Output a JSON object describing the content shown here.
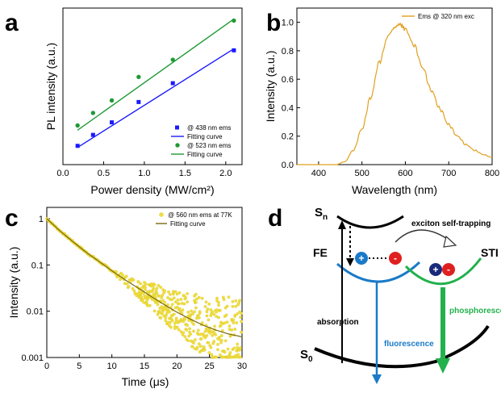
{
  "chart_data": [
    {
      "panel": "a",
      "type": "scatter",
      "xlabel": "Power density (MW/cm²)",
      "ylabel": "PL intensity (a.u.)",
      "xlim": [
        0.0,
        2.2
      ],
      "x_ticks": [
        "0.0",
        "0.5",
        "1.0",
        "1.5",
        "2.0"
      ],
      "grid": false,
      "legend_position": "bottom-right",
      "series": [
        {
          "name": "@ 438 nm ems",
          "color": "#1a1aff",
          "marker": "square",
          "x": [
            0.18,
            0.37,
            0.6,
            0.93,
            1.35,
            2.1
          ],
          "y": [
            0.12,
            0.19,
            0.27,
            0.4,
            0.52,
            0.73
          ]
        },
        {
          "name": "Fitting curve",
          "color": "#1a1aff",
          "line": true,
          "x": [
            0.18,
            2.1
          ],
          "y": [
            0.11,
            0.74
          ]
        },
        {
          "name": "@ 523 nm ems",
          "color": "#1f9a34",
          "marker": "circle",
          "x": [
            0.18,
            0.37,
            0.6,
            0.93,
            1.35,
            2.1
          ],
          "y": [
            0.25,
            0.33,
            0.41,
            0.56,
            0.67,
            0.92
          ]
        },
        {
          "name": "Fitting curve",
          "color": "#1f9a34",
          "line": true,
          "x": [
            0.18,
            2.1
          ],
          "y": [
            0.22,
            0.93
          ]
        }
      ]
    },
    {
      "panel": "b",
      "type": "line",
      "xlabel": "Wavelength (nm)",
      "ylabel": "Intensity (a.u.)",
      "xlim": [
        350,
        800
      ],
      "ylim": [
        0.0,
        1.1
      ],
      "x_ticks": [
        "400",
        "500",
        "600",
        "700",
        "800"
      ],
      "y_ticks": [
        "0.0",
        "0.2",
        "0.4",
        "0.6",
        "0.8",
        "1.0"
      ],
      "grid": false,
      "legend_position": "top-right",
      "series": [
        {
          "name": "Ems @ 320 nm exc",
          "color": "#e0a020",
          "x": [
            440,
            460,
            480,
            500,
            520,
            540,
            560,
            575,
            590,
            600,
            620,
            640,
            660,
            680,
            700,
            720,
            740,
            760,
            780,
            800
          ],
          "y": [
            0.0,
            0.02,
            0.1,
            0.25,
            0.47,
            0.72,
            0.9,
            0.97,
            0.98,
            0.95,
            0.84,
            0.68,
            0.52,
            0.39,
            0.28,
            0.2,
            0.14,
            0.1,
            0.07,
            0.05
          ]
        }
      ]
    },
    {
      "panel": "c",
      "type": "scatter",
      "xlabel": "Time (μs)",
      "ylabel": "Intensity (a.u.)",
      "xlim": [
        0,
        30
      ],
      "ylim": [
        0.001,
        1
      ],
      "y_scale": "log",
      "x_ticks": [
        "0",
        "5",
        "10",
        "15",
        "20",
        "25",
        "30"
      ],
      "y_ticks": [
        "0.001",
        "0.01",
        "0.1",
        "1"
      ],
      "grid": false,
      "legend_position": "top-right",
      "series": [
        {
          "name": "@ 560 nm ems at 77K",
          "color": "#f0e040",
          "marker": "circle",
          "x": [
            0,
            2,
            4,
            6,
            8,
            10,
            12,
            14,
            16,
            18,
            20,
            22,
            24,
            26,
            28,
            30
          ],
          "y": [
            1.0,
            0.55,
            0.32,
            0.19,
            0.12,
            0.075,
            0.048,
            0.032,
            0.021,
            0.014,
            0.0095,
            0.0068,
            0.005,
            0.0039,
            0.0032,
            0.0028
          ]
        },
        {
          "name": "Fitting curve",
          "color": "#7a6a10",
          "line": true,
          "x": [
            0,
            2,
            4,
            6,
            8,
            10,
            12,
            14,
            16,
            18,
            20,
            22,
            24,
            26,
            28,
            30
          ],
          "y": [
            1.0,
            0.55,
            0.32,
            0.19,
            0.12,
            0.075,
            0.048,
            0.032,
            0.021,
            0.014,
            0.0095,
            0.0068,
            0.005,
            0.0039,
            0.0032,
            0.0028
          ]
        }
      ]
    }
  ],
  "panels": {
    "a": {
      "letter": "a"
    },
    "b": {
      "letter": "b"
    },
    "c": {
      "letter": "c"
    },
    "d": {
      "letter": "d"
    }
  },
  "diagram_d": {
    "sn": "S",
    "sn_sub": "n",
    "s0": "S",
    "s0_sub": "0",
    "fe": "FE",
    "sti": "STI",
    "exciton": "exciton self-trapping",
    "absorption": "absorption",
    "fluorescence": "fluorescence",
    "phosphorescence": "phosphoresce",
    "plus": "+",
    "minus": "-",
    "colors": {
      "fluorescence": "#1a7ac8",
      "phosphorescence": "#22b14c",
      "plus": "#1a7ac8",
      "minus": "#e02020",
      "sti_plus": "#1a2a7a"
    }
  }
}
